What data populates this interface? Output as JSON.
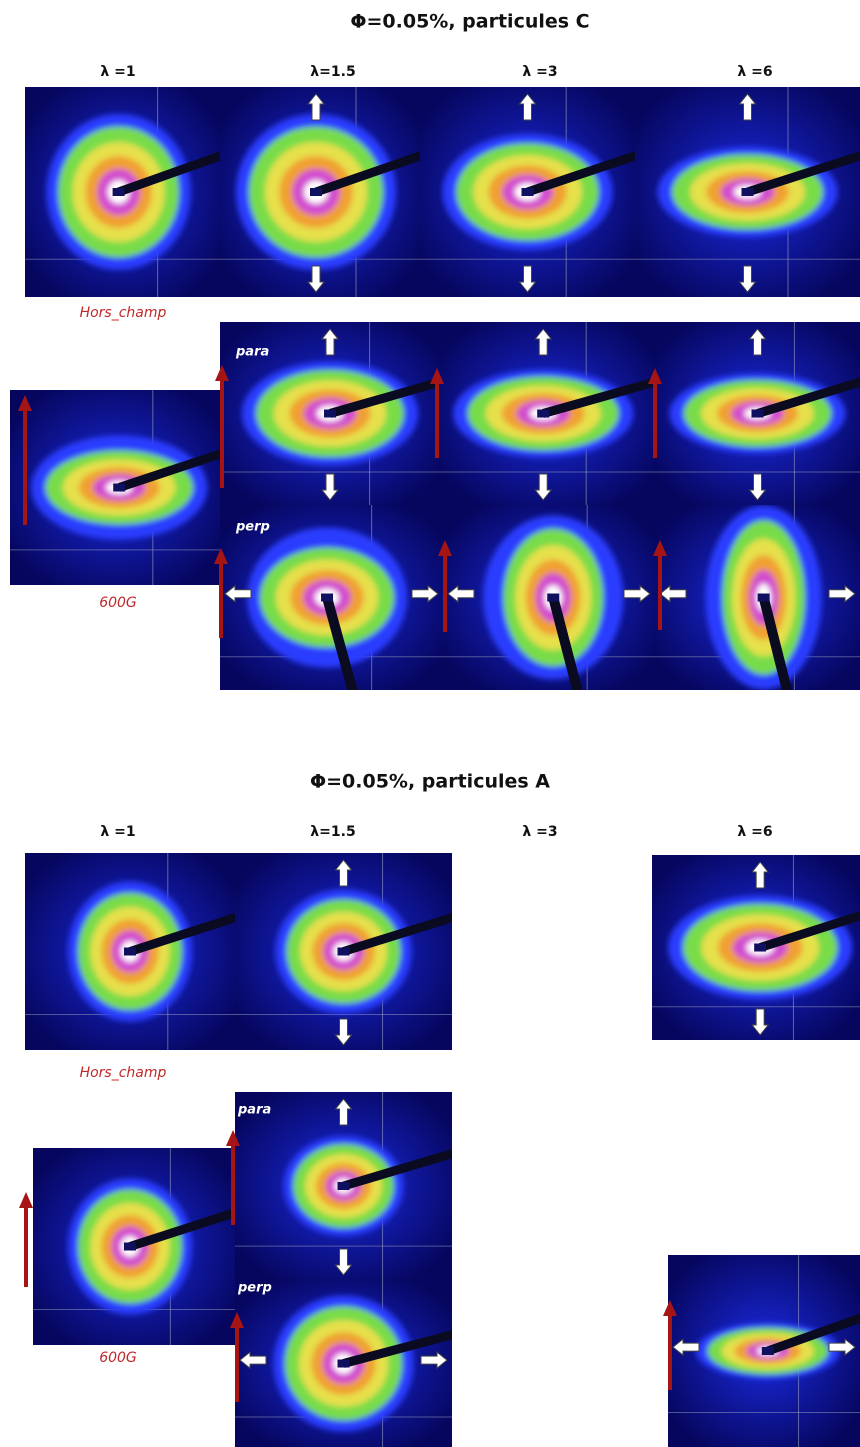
{
  "sections": [
    {
      "title": "Φ=0.05%, particules C",
      "columns": [
        "λ =1",
        "λ=1.5",
        "λ =3",
        "λ =6"
      ],
      "off_field": "Hors_champ",
      "field": "600G",
      "parallel": "para",
      "perpendicular": "perp"
    },
    {
      "title": "Φ=0.05%, particules A",
      "columns": [
        "λ =1",
        "λ=1.5",
        "λ =3",
        "λ =6"
      ],
      "off_field": "Hors_champ",
      "field": "600G",
      "parallel": "para",
      "perpendicular": "perp"
    }
  ]
}
